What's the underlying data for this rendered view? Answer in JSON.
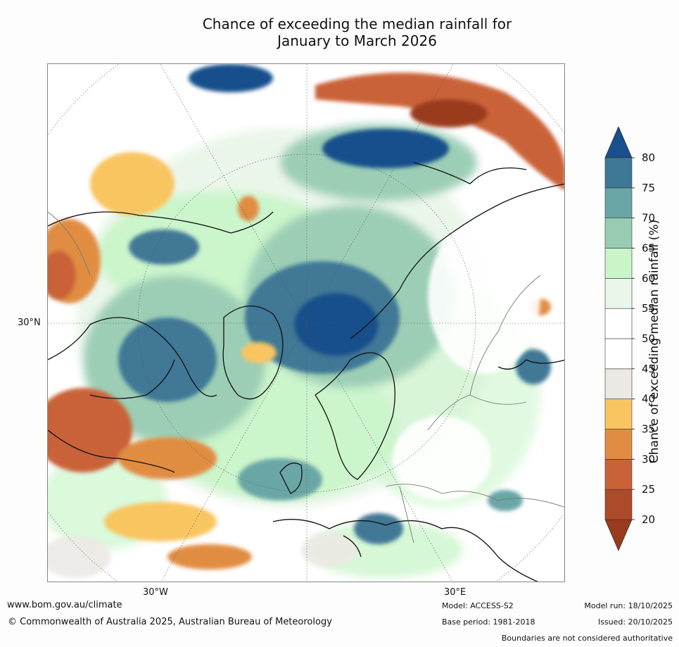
{
  "title": {
    "line1": "Chance of exceeding the median rainfall for",
    "line2": "January to March 2026"
  },
  "map": {
    "labels": {
      "lat_30n": "30°N",
      "lon_30w": "30°W",
      "lon_30e": "30°E"
    },
    "colors": {
      "dark_brown": "#9a3a1e",
      "brown": "#b9502a",
      "orange_dark": "#cd6a35",
      "orange": "#e08d43",
      "yellow_orange": "#f8c561",
      "grey_neutral": "#ece9e5",
      "white": "#ffffff",
      "pale_green": "#eaf6ea",
      "light_green": "#c9f5c9",
      "green_teal": "#97ccb2",
      "teal": "#6aa6a6",
      "blue_teal": "#3f7896",
      "dark_blue": "#17508c"
    }
  },
  "legend": {
    "title": "Chance of exceeding median rainfall (%)",
    "ticks": [
      "20",
      "25",
      "30",
      "35",
      "40",
      "45",
      "50",
      "55",
      "60",
      "65",
      "70",
      "75",
      "80"
    ],
    "colors": [
      "#9a3a1e",
      "#ad4a2a",
      "#c96237",
      "#e08d43",
      "#f8c561",
      "#ece9e5",
      "#ffffff",
      "#ffffff",
      "#eaf6ea",
      "#c9f5c9",
      "#97ccb2",
      "#6aa6a6",
      "#3f7896",
      "#17508c"
    ]
  },
  "footer": {
    "website": "www.bom.gov.au/climate",
    "copyright": "© Commonwealth of Australia 2025, Australian Bureau of Meteorology",
    "model": "Model: ACCESS-S2",
    "base_period": "Base period: 1981-2018",
    "model_run": "Model run: 18/10/2025",
    "issued": "Issued: 20/10/2025",
    "disclaimer": "Boundaries are not considered authoritative"
  }
}
